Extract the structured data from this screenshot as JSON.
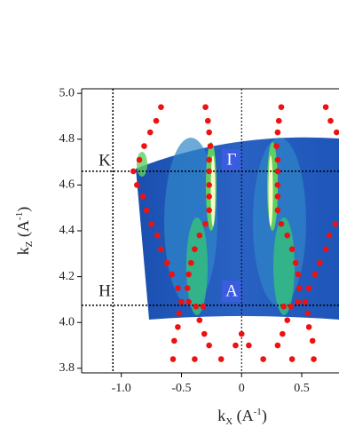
{
  "chart_data": {
    "type": "scatter",
    "x_label": [
      "k",
      "X",
      " (A",
      "-1",
      ")"
    ],
    "y_label": [
      "k",
      "Z",
      " (A",
      "-1",
      ")"
    ],
    "xlim": [
      -1.33,
      0.81
    ],
    "ylim": [
      3.78,
      5.02
    ],
    "xticks": [
      {
        "value": -1.0,
        "label": "-1.0"
      },
      -0.5,
      0,
      0.5
    ],
    "yticks": [
      3.8,
      {
        "value": 4.0,
        "label": "4.0"
      },
      4.2,
      4.4,
      4.6,
      4.8,
      {
        "value": 5.0,
        "label": "5.0"
      }
    ],
    "color": "#ee1111",
    "x": [
      -0.67,
      -0.71,
      -0.76,
      -0.81,
      -0.85,
      -0.9,
      -0.87,
      -0.82,
      -0.79,
      -0.75,
      -0.7,
      -0.67,
      -0.62,
      -0.58,
      -0.53,
      -0.5,
      -0.52,
      -0.53,
      -0.56,
      -0.57,
      -0.3,
      -0.28,
      -0.27,
      -0.26,
      -0.27,
      -0.27,
      -0.27,
      -0.27,
      -0.27,
      -0.3,
      -0.35,
      -0.39,
      -0.42,
      -0.44,
      -0.45,
      -0.44,
      -0.38,
      -0.32,
      -0.35,
      -0.31,
      -0.27,
      -0.39,
      0.7,
      0.74,
      0.79,
      0.78,
      0.73,
      0.7,
      0.65,
      0.61,
      0.56,
      0.53,
      0.55,
      0.56,
      0.59,
      0.6,
      0.33,
      0.31,
      0.3,
      0.29,
      0.3,
      0.3,
      0.3,
      0.3,
      0.3,
      0.33,
      0.38,
      0.42,
      0.45,
      0.47,
      0.48,
      0.47,
      0.41,
      0.35,
      0.38,
      0.34,
      0.3,
      0.42,
      0,
      -0.05,
      0.06,
      -0.17,
      0.18
    ],
    "values": [
      4.94,
      4.88,
      4.83,
      4.77,
      4.71,
      4.66,
      4.6,
      4.55,
      4.49,
      4.43,
      4.38,
      4.32,
      4.26,
      4.21,
      4.15,
      4.09,
      4.04,
      3.98,
      3.92,
      3.84,
      4.94,
      4.88,
      4.83,
      4.77,
      4.71,
      4.66,
      4.6,
      4.55,
      4.49,
      4.43,
      4.38,
      4.32,
      4.26,
      4.21,
      4.15,
      4.09,
      4.07,
      4.07,
      4.01,
      3.95,
      3.9,
      3.84,
      4.94,
      4.88,
      4.83,
      4.43,
      4.38,
      4.32,
      4.26,
      4.21,
      4.15,
      4.09,
      4.04,
      3.98,
      3.92,
      3.84,
      4.94,
      4.88,
      4.83,
      4.77,
      4.71,
      4.66,
      4.6,
      4.55,
      4.49,
      4.43,
      4.38,
      4.32,
      4.26,
      4.21,
      4.15,
      4.09,
      4.07,
      4.07,
      4.01,
      3.95,
      3.9,
      3.84,
      3.95,
      3.9,
      3.9,
      3.84,
      3.84
    ],
    "hlines": [
      4.66,
      4.075
    ],
    "vlines": [
      -1.07,
      0
    ],
    "annotations": [
      "K",
      "H",
      "Γ",
      "A"
    ]
  }
}
